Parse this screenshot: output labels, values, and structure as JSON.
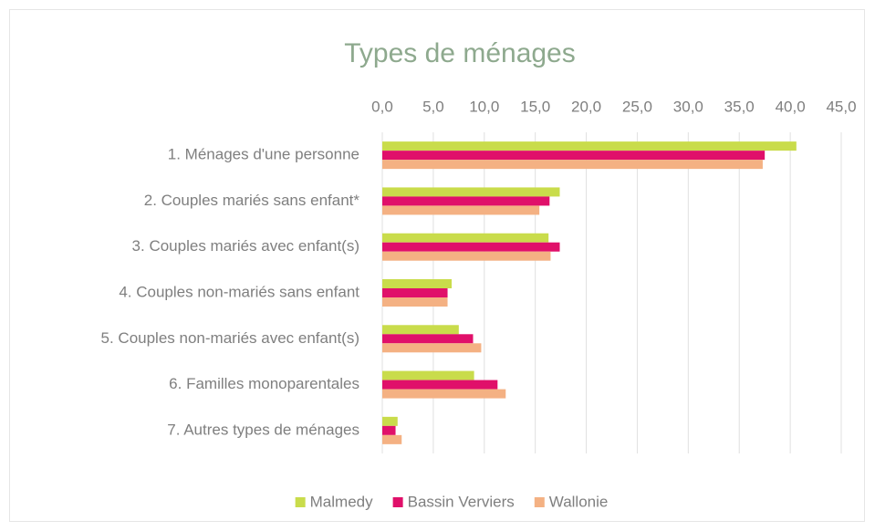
{
  "chart_data": {
    "type": "hbar",
    "title": "Types de ménages",
    "categories": [
      "1. Ménages d'une personne",
      "2. Couples mariés sans enfant*",
      "3. Couples mariés avec enfant(s)",
      "4. Couples non-mariés sans enfant",
      "5. Couples non-mariés avec enfant(s)",
      "6. Familles monoparentales",
      "7. Autres types de ménages"
    ],
    "series": [
      {
        "name": "Malmedy",
        "color": "#c9dc4b",
        "values": [
          40.6,
          17.4,
          16.3,
          6.8,
          7.5,
          9.0,
          1.5
        ]
      },
      {
        "name": "Bassin Verviers",
        "color": "#e0106a",
        "values": [
          37.5,
          16.4,
          17.4,
          6.4,
          8.9,
          11.3,
          1.3
        ]
      },
      {
        "name": "Wallonie",
        "color": "#f4b183",
        "values": [
          37.3,
          15.4,
          16.5,
          6.4,
          9.7,
          12.1,
          1.9
        ]
      }
    ],
    "xlim": [
      0,
      45
    ],
    "xticks": [
      {
        "value": 0,
        "label": "0,0"
      },
      {
        "value": 5,
        "label": "5,0"
      },
      {
        "value": 10,
        "label": "10,0"
      },
      {
        "value": 15,
        "label": "15,0"
      },
      {
        "value": 20,
        "label": "20,0"
      },
      {
        "value": 25,
        "label": "25,0"
      },
      {
        "value": 30,
        "label": "30,0"
      },
      {
        "value": 35,
        "label": "35,0"
      },
      {
        "value": 40,
        "label": "40,0"
      },
      {
        "value": 45,
        "label": "45,0"
      }
    ],
    "grid": true,
    "legend": "bottom"
  }
}
